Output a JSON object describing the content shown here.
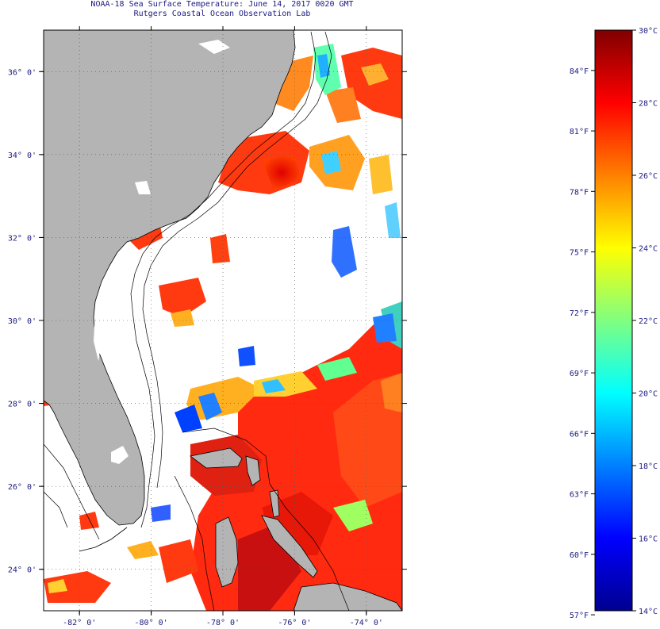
{
  "title": "NOAA-18 Sea Surface Temperature:  June 14, 2017 0020 GMT",
  "subtitle": "Rutgers Coastal Ocean Observation Lab",
  "map": {
    "lon_range": [
      -83,
      -73
    ],
    "lat_range": [
      23,
      37
    ],
    "lon_ticks": [
      {
        "lon": -82,
        "label": "-82° 0'"
      },
      {
        "lon": -80,
        "label": "-80° 0'"
      },
      {
        "lon": -78,
        "label": "-78° 0'"
      },
      {
        "lon": -76,
        "label": "-76° 0'"
      },
      {
        "lon": -74,
        "label": "-74° 0'"
      }
    ],
    "lat_ticks": [
      {
        "lat": 36,
        "label": "36° 0'"
      },
      {
        "lat": 34,
        "label": "34° 0'"
      },
      {
        "lat": 32,
        "label": "32° 0'"
      },
      {
        "lat": 30,
        "label": "30° 0'"
      },
      {
        "lat": 28,
        "label": "28° 0'"
      },
      {
        "lat": 26,
        "label": "26° 0'"
      },
      {
        "lat": 24,
        "label": "24° 0'"
      }
    ],
    "land_color": "#b4b4b4",
    "grid": "dotted"
  },
  "colorbar": {
    "celsius": [
      {
        "value": 30,
        "label": "30°C"
      },
      {
        "value": 28,
        "label": "28°C"
      },
      {
        "value": 26,
        "label": "26°C"
      },
      {
        "value": 24,
        "label": "24°C"
      },
      {
        "value": 22,
        "label": "22°C"
      },
      {
        "value": 20,
        "label": "20°C"
      },
      {
        "value": 18,
        "label": "18°C"
      },
      {
        "value": 16,
        "label": "16°C"
      },
      {
        "value": 14,
        "label": "14°C"
      }
    ],
    "fahrenheit": [
      {
        "value": 84,
        "label": "84°F"
      },
      {
        "value": 81,
        "label": "81°F"
      },
      {
        "value": 78,
        "label": "78°F"
      },
      {
        "value": 75,
        "label": "75°F"
      },
      {
        "value": 72,
        "label": "72°F"
      },
      {
        "value": 69,
        "label": "69°F"
      },
      {
        "value": 66,
        "label": "66°F"
      },
      {
        "value": 63,
        "label": "63°F"
      },
      {
        "value": 60,
        "label": "60°F"
      },
      {
        "value": 57,
        "label": "57°F"
      }
    ],
    "range_c": [
      14,
      30
    ],
    "colors": [
      "#00008f",
      "#0000ff",
      "#0080ff",
      "#00ffff",
      "#80ff80",
      "#ffff00",
      "#ff8000",
      "#ff0000",
      "#800000"
    ]
  }
}
